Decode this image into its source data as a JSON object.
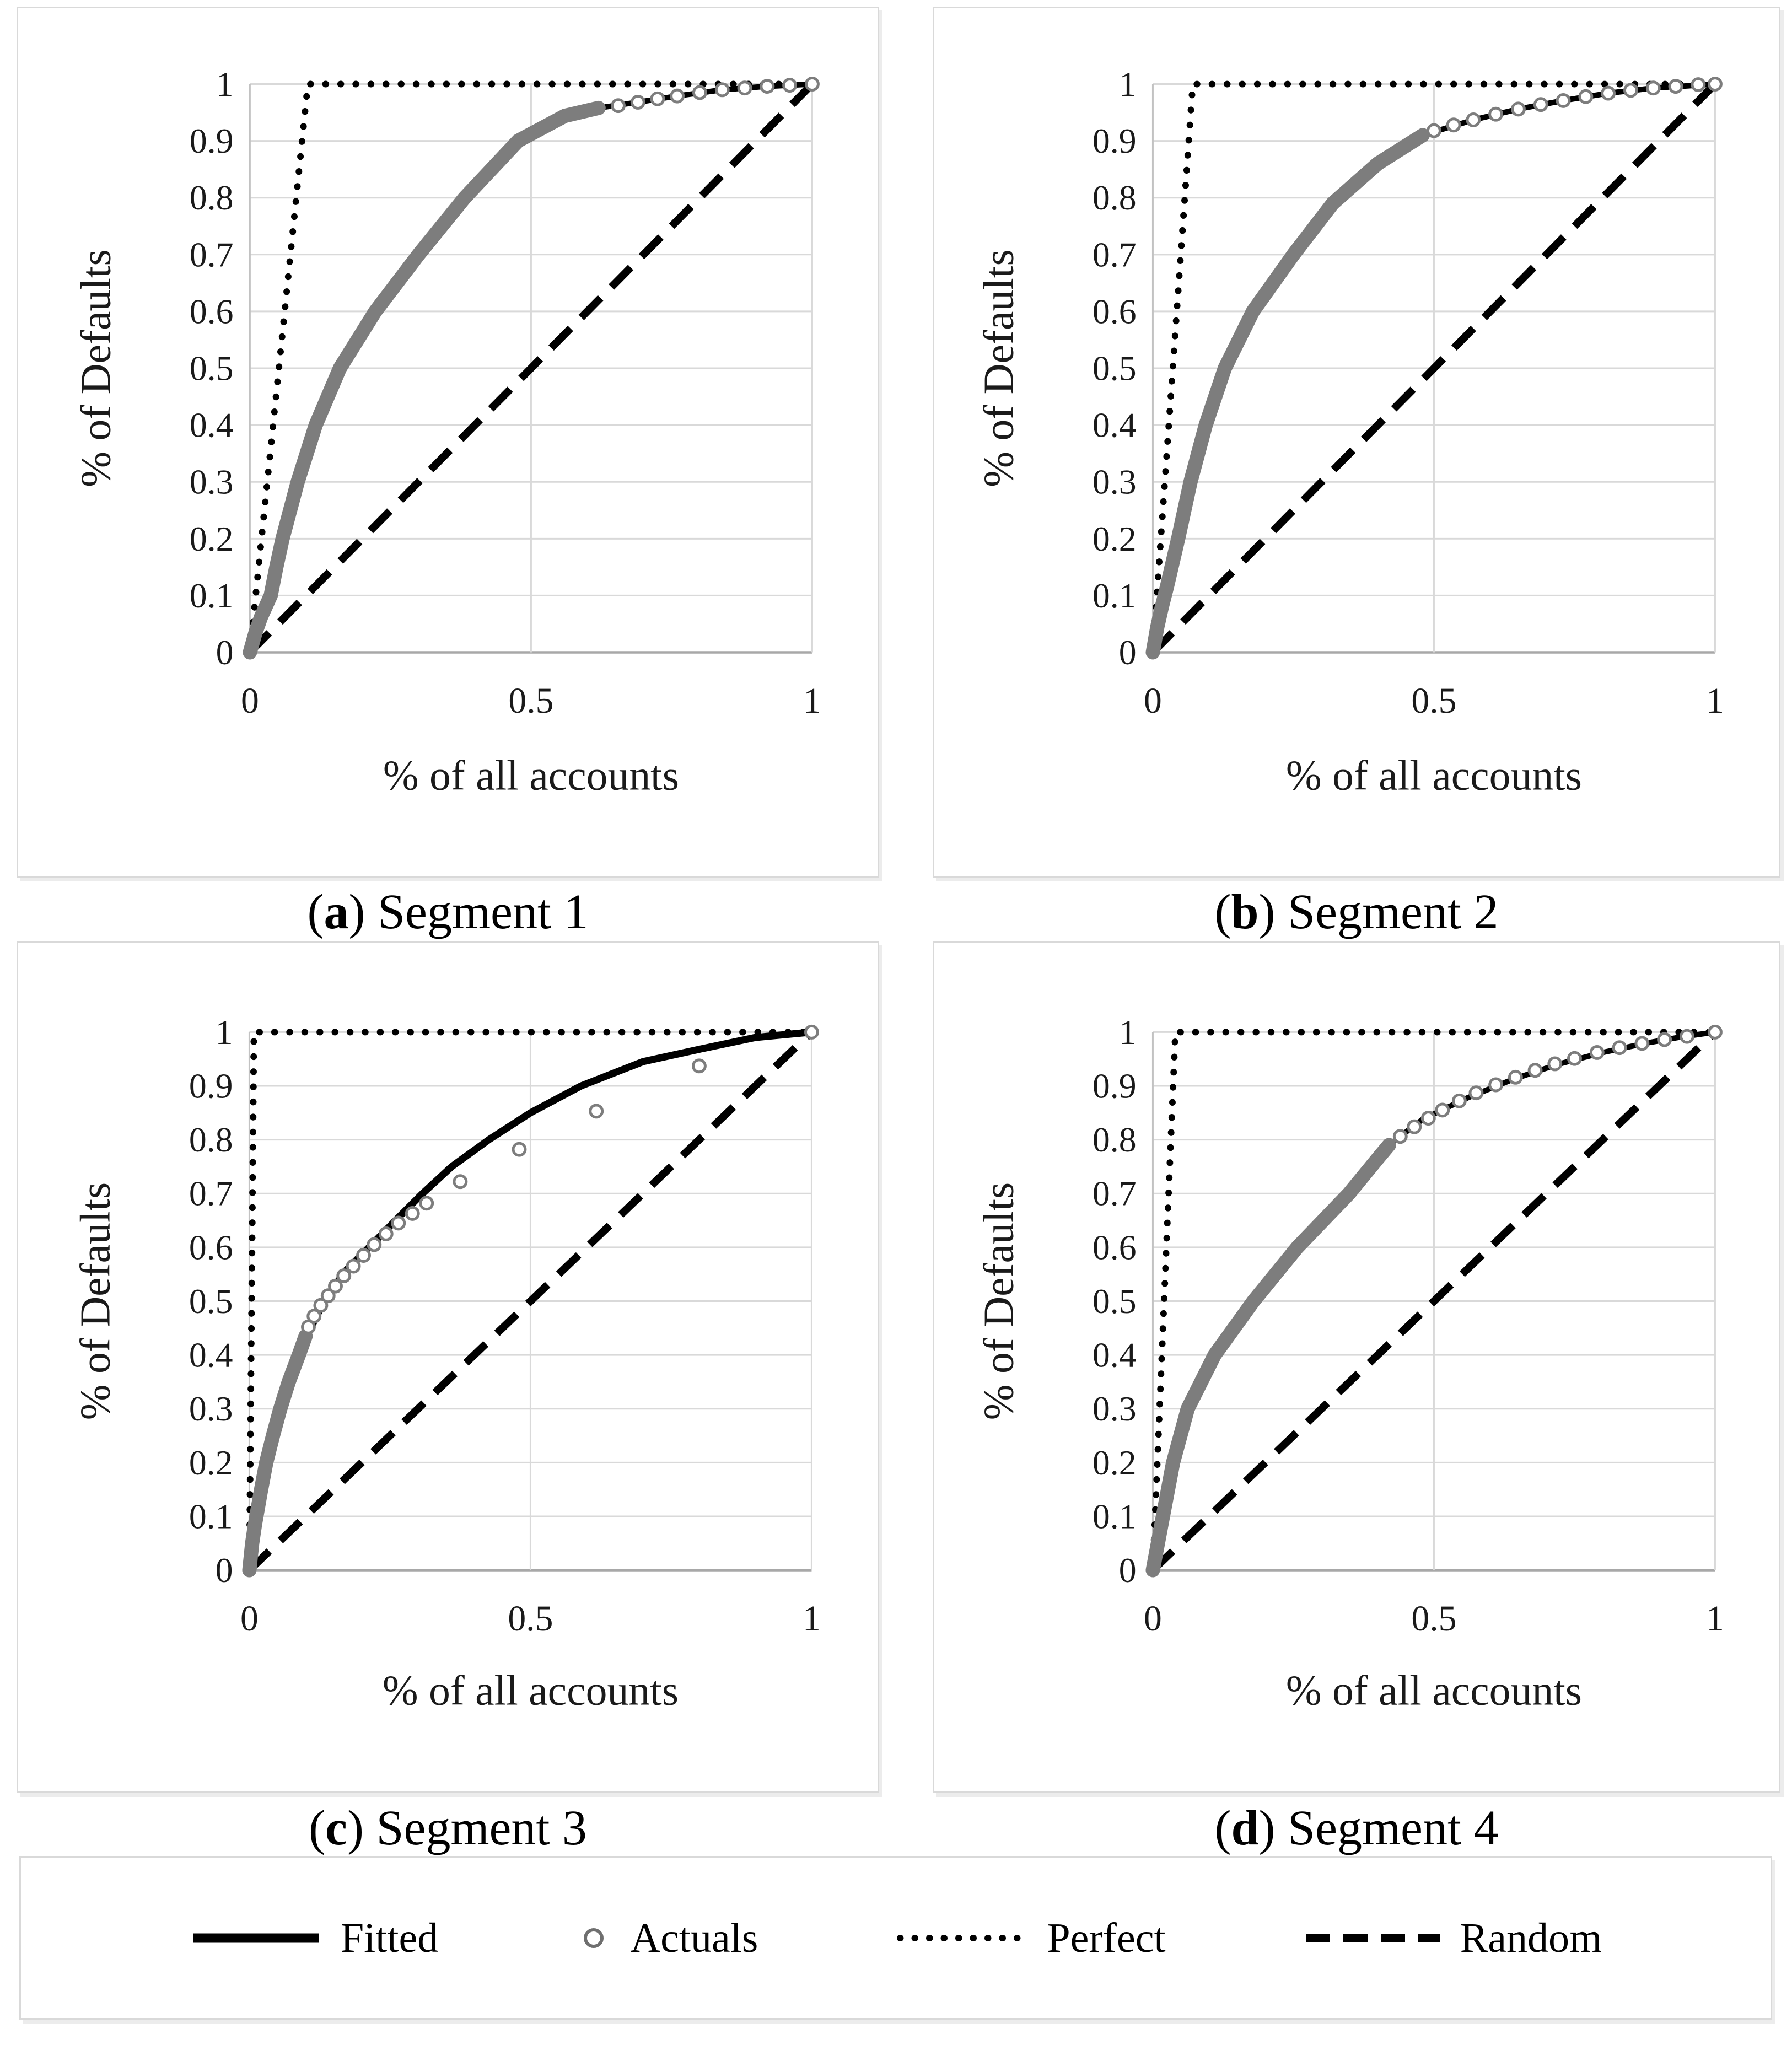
{
  "figure": {
    "axes": {
      "x_label": "% of all accounts",
      "y_label": "% of Defaults",
      "x_ticks": [
        {
          "v": 0,
          "label": "0"
        },
        {
          "v": 0.5,
          "label": "0.5"
        },
        {
          "v": 1,
          "label": "1"
        }
      ],
      "y_ticks": [
        {
          "v": 0,
          "label": "0"
        },
        {
          "v": 0.1,
          "label": "0.1"
        },
        {
          "v": 0.2,
          "label": "0.2"
        },
        {
          "v": 0.3,
          "label": "0.3"
        },
        {
          "v": 0.4,
          "label": "0.4"
        },
        {
          "v": 0.5,
          "label": "0.5"
        },
        {
          "v": 0.6,
          "label": "0.6"
        },
        {
          "v": 0.7,
          "label": "0.7"
        },
        {
          "v": 0.8,
          "label": "0.8"
        },
        {
          "v": 0.9,
          "label": "0.9"
        },
        {
          "v": 1,
          "label": "1"
        }
      ],
      "xlim": [
        0,
        1
      ],
      "ylim": [
        0,
        1
      ],
      "grid": "on"
    },
    "legend": {
      "position": "bottom",
      "items": [
        {
          "label": "Fitted"
        },
        {
          "label": "Actuals"
        },
        {
          "label": "Perfect"
        },
        {
          "label": "Random"
        }
      ]
    },
    "colors": {
      "fitted": "#000000",
      "actuals": "#7d7d7d",
      "perfect": "#000000",
      "random": "#000000",
      "grid": "#d9d9d9",
      "axis": "#a8a8a8",
      "text": "#1a1a1a"
    }
  },
  "chart_data": [
    {
      "panel": "a",
      "type": "line+scatter",
      "caption_open": "(",
      "caption_letter": "a",
      "caption_close": ") ",
      "caption_title": "Segment 1",
      "xlabel": "% of all accounts",
      "ylabel": "% of Defaults",
      "xlim": [
        0,
        1
      ],
      "ylim": [
        0,
        1
      ],
      "series": [
        {
          "name": "Fitted",
          "type": "line",
          "points": [
            [
              0,
              0
            ],
            [
              0.01,
              0.035
            ],
            [
              0.02,
              0.063
            ],
            [
              0.037,
              0.1
            ],
            [
              0.047,
              0.15
            ],
            [
              0.058,
              0.2
            ],
            [
              0.085,
              0.3
            ],
            [
              0.117,
              0.4
            ],
            [
              0.16,
              0.5
            ],
            [
              0.223,
              0.6
            ],
            [
              0.3,
              0.7
            ],
            [
              0.382,
              0.8
            ],
            [
              0.477,
              0.9
            ],
            [
              0.56,
              0.944
            ],
            [
              0.62,
              0.958
            ],
            [
              0.69,
              0.968
            ],
            [
              0.76,
              0.979
            ],
            [
              0.84,
              0.99
            ],
            [
              0.92,
              0.996
            ],
            [
              1,
              1
            ]
          ]
        },
        {
          "name": "Actuals",
          "type": "scatter",
          "band": [
            [
              0,
              0
            ],
            [
              0.01,
              0.035
            ],
            [
              0.02,
              0.063
            ],
            [
              0.037,
              0.1
            ],
            [
              0.047,
              0.15
            ],
            [
              0.058,
              0.2
            ],
            [
              0.085,
              0.3
            ],
            [
              0.117,
              0.4
            ],
            [
              0.16,
              0.5
            ],
            [
              0.223,
              0.6
            ],
            [
              0.3,
              0.7
            ],
            [
              0.382,
              0.8
            ],
            [
              0.477,
              0.9
            ],
            [
              0.56,
              0.944
            ],
            [
              0.62,
              0.958
            ]
          ],
          "markers": [
            [
              0.655,
              0.962
            ],
            [
              0.69,
              0.968
            ],
            [
              0.725,
              0.974
            ],
            [
              0.76,
              0.979
            ],
            [
              0.8,
              0.985
            ],
            [
              0.84,
              0.99
            ],
            [
              0.88,
              0.993
            ],
            [
              0.92,
              0.996
            ],
            [
              0.96,
              0.998
            ],
            [
              1,
              1
            ]
          ]
        },
        {
          "name": "Perfect",
          "type": "line",
          "points": [
            [
              0,
              0
            ],
            [
              0.103,
              1
            ],
            [
              1,
              1
            ]
          ]
        },
        {
          "name": "Random",
          "type": "line",
          "points": [
            [
              0,
              0
            ],
            [
              1,
              1
            ]
          ]
        }
      ]
    },
    {
      "panel": "b",
      "type": "line+scatter",
      "caption_open": "(",
      "caption_letter": "b",
      "caption_close": ") ",
      "caption_title": "Segment 2",
      "xlabel": "% of all accounts",
      "ylabel": "% of Defaults",
      "xlim": [
        0,
        1
      ],
      "ylim": [
        0,
        1
      ],
      "series": [
        {
          "name": "Fitted",
          "type": "line",
          "points": [
            [
              0,
              0
            ],
            [
              0.008,
              0.045
            ],
            [
              0.016,
              0.08
            ],
            [
              0.025,
              0.115
            ],
            [
              0.045,
              0.2
            ],
            [
              0.067,
              0.3
            ],
            [
              0.094,
              0.4
            ],
            [
              0.128,
              0.5
            ],
            [
              0.178,
              0.6
            ],
            [
              0.25,
              0.7
            ],
            [
              0.32,
              0.79
            ],
            [
              0.4,
              0.86
            ],
            [
              0.48,
              0.91
            ],
            [
              0.57,
              0.937
            ],
            [
              0.65,
              0.956
            ],
            [
              0.73,
              0.971
            ],
            [
              0.81,
              0.984
            ],
            [
              0.89,
              0.993
            ],
            [
              1,
              1
            ]
          ]
        },
        {
          "name": "Actuals",
          "type": "scatter",
          "band": [
            [
              0,
              0
            ],
            [
              0.008,
              0.045
            ],
            [
              0.016,
              0.08
            ],
            [
              0.025,
              0.115
            ],
            [
              0.045,
              0.2
            ],
            [
              0.067,
              0.3
            ],
            [
              0.094,
              0.4
            ],
            [
              0.128,
              0.5
            ],
            [
              0.178,
              0.6
            ],
            [
              0.25,
              0.7
            ],
            [
              0.32,
              0.79
            ],
            [
              0.4,
              0.86
            ],
            [
              0.48,
              0.91
            ]
          ],
          "markers": [
            [
              0.5,
              0.918
            ],
            [
              0.535,
              0.928
            ],
            [
              0.57,
              0.937
            ],
            [
              0.61,
              0.947
            ],
            [
              0.65,
              0.956
            ],
            [
              0.69,
              0.964
            ],
            [
              0.73,
              0.971
            ],
            [
              0.77,
              0.978
            ],
            [
              0.81,
              0.984
            ],
            [
              0.85,
              0.989
            ],
            [
              0.89,
              0.993
            ],
            [
              0.93,
              0.996
            ],
            [
              0.97,
              0.999
            ],
            [
              1,
              1
            ]
          ]
        },
        {
          "name": "Perfect",
          "type": "line",
          "points": [
            [
              0,
              0
            ],
            [
              0.071,
              1
            ],
            [
              1,
              1
            ]
          ]
        },
        {
          "name": "Random",
          "type": "line",
          "points": [
            [
              0,
              0
            ],
            [
              1,
              1
            ]
          ]
        }
      ]
    },
    {
      "panel": "c",
      "type": "line+scatter",
      "caption_open": "(",
      "caption_letter": "c",
      "caption_close": ") ",
      "caption_title": "Segment 3",
      "xlabel": "% of all accounts",
      "ylabel": "% of Defaults",
      "xlim": [
        0,
        1
      ],
      "ylim": [
        0,
        1
      ],
      "series": [
        {
          "name": "Fitted",
          "type": "line",
          "points": [
            [
              0,
              0
            ],
            [
              0.008,
              0.06
            ],
            [
              0.016,
              0.1
            ],
            [
              0.032,
              0.2
            ],
            [
              0.053,
              0.3
            ],
            [
              0.085,
              0.4
            ],
            [
              0.133,
              0.5
            ],
            [
              0.17,
              0.555
            ],
            [
              0.213,
              0.6
            ],
            [
              0.26,
              0.65
            ],
            [
              0.308,
              0.7
            ],
            [
              0.36,
              0.75
            ],
            [
              0.426,
              0.8
            ],
            [
              0.5,
              0.85
            ],
            [
              0.59,
              0.9
            ],
            [
              0.7,
              0.945
            ],
            [
              0.8,
              0.968
            ],
            [
              0.9,
              0.99
            ],
            [
              1,
              1
            ]
          ]
        },
        {
          "name": "Actuals",
          "type": "scatter",
          "band": [
            [
              0,
              0
            ],
            [
              0.005,
              0.05
            ],
            [
              0.01,
              0.085
            ],
            [
              0.015,
              0.115
            ],
            [
              0.02,
              0.145
            ],
            [
              0.03,
              0.2
            ],
            [
              0.042,
              0.25
            ],
            [
              0.055,
              0.3
            ],
            [
              0.07,
              0.35
            ],
            [
              0.088,
              0.4
            ],
            [
              0.1,
              0.435
            ]
          ],
          "markers": [
            [
              0.105,
              0.452
            ],
            [
              0.115,
              0.472
            ],
            [
              0.127,
              0.492
            ],
            [
              0.14,
              0.51
            ],
            [
              0.153,
              0.528
            ],
            [
              0.168,
              0.547
            ],
            [
              0.185,
              0.565
            ],
            [
              0.203,
              0.585
            ],
            [
              0.222,
              0.605
            ],
            [
              0.243,
              0.625
            ],
            [
              0.265,
              0.645
            ],
            [
              0.29,
              0.663
            ],
            [
              0.315,
              0.682
            ],
            [
              0.375,
              0.722
            ],
            [
              0.48,
              0.782
            ],
            [
              0.617,
              0.853
            ],
            [
              0.8,
              0.937
            ],
            [
              1,
              1
            ]
          ]
        },
        {
          "name": "Perfect",
          "type": "line",
          "points": [
            [
              0,
              0
            ],
            [
              0.008,
              1
            ],
            [
              1,
              1
            ]
          ]
        },
        {
          "name": "Random",
          "type": "line",
          "points": [
            [
              0,
              0
            ],
            [
              1,
              1
            ]
          ]
        }
      ]
    },
    {
      "panel": "d",
      "type": "line+scatter",
      "caption_open": "(",
      "caption_letter": "d",
      "caption_close": ") ",
      "caption_title": "Segment 4",
      "xlabel": "% of all accounts",
      "ylabel": "% of Defaults",
      "xlim": [
        0,
        1
      ],
      "ylim": [
        0,
        1
      ],
      "series": [
        {
          "name": "Fitted",
          "type": "line",
          "points": [
            [
              0,
              0
            ],
            [
              0.009,
              0.05
            ],
            [
              0.018,
              0.1
            ],
            [
              0.036,
              0.2
            ],
            [
              0.062,
              0.3
            ],
            [
              0.11,
              0.4
            ],
            [
              0.179,
              0.5
            ],
            [
              0.257,
              0.6
            ],
            [
              0.349,
              0.7
            ],
            [
              0.4,
              0.765
            ],
            [
              0.42,
              0.79
            ],
            [
              0.48,
              0.838
            ],
            [
              0.56,
              0.878
            ],
            [
              0.64,
              0.912
            ],
            [
              0.72,
              0.94
            ],
            [
              0.8,
              0.962
            ],
            [
              0.88,
              0.98
            ],
            [
              0.94,
              0.991
            ],
            [
              1,
              1
            ]
          ]
        },
        {
          "name": "Actuals",
          "type": "scatter",
          "band": [
            [
              0,
              0
            ],
            [
              0.009,
              0.05
            ],
            [
              0.018,
              0.1
            ],
            [
              0.036,
              0.2
            ],
            [
              0.062,
              0.3
            ],
            [
              0.11,
              0.4
            ],
            [
              0.179,
              0.5
            ],
            [
              0.257,
              0.6
            ],
            [
              0.349,
              0.7
            ],
            [
              0.4,
              0.765
            ],
            [
              0.42,
              0.79
            ]
          ],
          "markers": [
            [
              0.44,
              0.806
            ],
            [
              0.465,
              0.824
            ],
            [
              0.49,
              0.84
            ],
            [
              0.515,
              0.855
            ],
            [
              0.545,
              0.872
            ],
            [
              0.575,
              0.887
            ],
            [
              0.61,
              0.902
            ],
            [
              0.645,
              0.916
            ],
            [
              0.68,
              0.929
            ],
            [
              0.715,
              0.941
            ],
            [
              0.75,
              0.951
            ],
            [
              0.79,
              0.962
            ],
            [
              0.83,
              0.971
            ],
            [
              0.87,
              0.979
            ],
            [
              0.91,
              0.986
            ],
            [
              0.95,
              0.992
            ],
            [
              1,
              1
            ]
          ]
        },
        {
          "name": "Perfect",
          "type": "line",
          "points": [
            [
              0,
              0
            ],
            [
              0.04,
              1
            ],
            [
              1,
              1
            ]
          ]
        },
        {
          "name": "Random",
          "type": "line",
          "points": [
            [
              0,
              0
            ],
            [
              1,
              1
            ]
          ]
        }
      ]
    }
  ]
}
